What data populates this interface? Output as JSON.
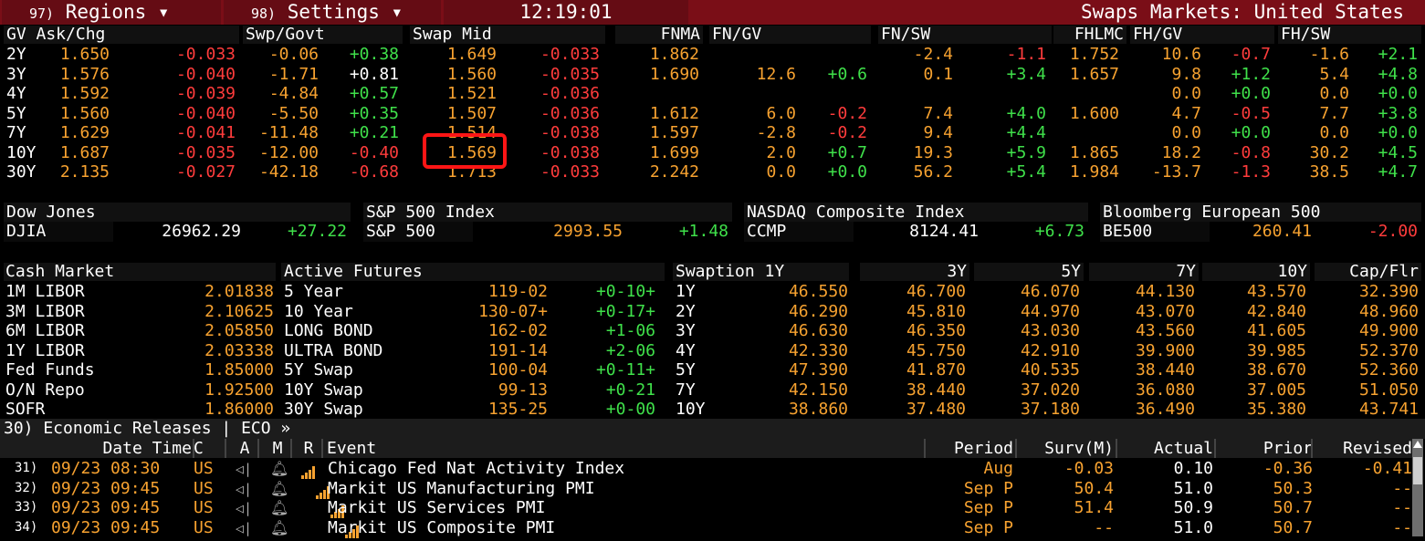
{
  "topbar": {
    "regions_num": "97)",
    "regions": "Regions ▾",
    "settings_num": "98)",
    "settings": "Settings ▾",
    "time": "12:19:01",
    "title": "Swaps Markets: United States"
  },
  "swaps": {
    "headers": {
      "gv": "GV Ask/Chg",
      "swpgovt": "Swp/Govt",
      "swapmid": "Swap Mid",
      "fnma": "FNMA",
      "fngv": "FN/GV",
      "fnsw": "FN/SW",
      "fhlmc": "FHLMC",
      "fhgv": "FH/GV",
      "fhsw": "FH/SW"
    },
    "rows": [
      {
        "t": "2Y",
        "gv": "1.650",
        "gvc": "-0.033",
        "sg": "-0.06",
        "sgc": "+0.38",
        "sm": "1.649",
        "smc": "-0.033",
        "fnma": "1.862",
        "fngv": "",
        "fngvc": "",
        "fnsw": "-2.4",
        "fnswc": "-1.1",
        "fhlmc": "1.752",
        "fhgv": "10.6",
        "fhgvc": "-0.7",
        "fhsw": "-1.6",
        "fhswc": "+2.1"
      },
      {
        "t": "3Y",
        "gv": "1.576",
        "gvc": "-0.040",
        "sg": "-1.71",
        "sgc": "+0.81",
        "sm": "1.560",
        "smc": "-0.035",
        "fnma": "1.690",
        "fngv": "12.6",
        "fngvc": "+0.6",
        "fnsw": "0.1",
        "fnswc": "+3.4",
        "fhlmc": "1.657",
        "fhgv": "9.8",
        "fhgvc": "+1.2",
        "fhsw": "5.4",
        "fhswc": "+4.8"
      },
      {
        "t": "4Y",
        "gv": "1.592",
        "gvc": "-0.039",
        "sg": "-4.84",
        "sgc": "+0.57",
        "sm": "1.521",
        "smc": "-0.036",
        "fnma": "",
        "fngv": "",
        "fngvc": "",
        "fnsw": "",
        "fnswc": "",
        "fhlmc": "",
        "fhgv": "0.0",
        "fhgvc": "+0.0",
        "fhsw": "0.0",
        "fhswc": "+0.0"
      },
      {
        "t": "5Y",
        "gv": "1.560",
        "gvc": "-0.040",
        "sg": "-5.50",
        "sgc": "+0.35",
        "sm": "1.507",
        "smc": "-0.036",
        "fnma": "1.612",
        "fngv": "6.0",
        "fngvc": "-0.2",
        "fnsw": "7.4",
        "fnswc": "+4.0",
        "fhlmc": "1.600",
        "fhgv": "4.7",
        "fhgvc": "-0.5",
        "fhsw": "7.7",
        "fhswc": "+3.8"
      },
      {
        "t": "7Y",
        "gv": "1.629",
        "gvc": "-0.041",
        "sg": "-11.48",
        "sgc": "+0.21",
        "sm": "1.514",
        "smc": "-0.038",
        "fnma": "1.597",
        "fngv": "-2.8",
        "fngvc": "-0.2",
        "fnsw": "9.4",
        "fnswc": "+4.4",
        "fhlmc": "",
        "fhgv": "0.0",
        "fhgvc": "+0.0",
        "fhsw": "0.0",
        "fhswc": "+0.0"
      },
      {
        "t": "10Y",
        "gv": "1.687",
        "gvc": "-0.035",
        "sg": "-12.00",
        "sgc": "-0.40",
        "sm": "1.569",
        "smc": "-0.038",
        "fnma": "1.699",
        "fngv": "2.0",
        "fngvc": "+0.7",
        "fnsw": "19.3",
        "fnswc": "+5.9",
        "fhlmc": "1.865",
        "fhgv": "18.2",
        "fhgvc": "-0.8",
        "fhsw": "30.2",
        "fhswc": "+4.5"
      },
      {
        "t": "30Y",
        "gv": "2.135",
        "gvc": "-0.027",
        "sg": "-42.18",
        "sgc": "-0.68",
        "sm": "1.713",
        "smc": "-0.033",
        "fnma": "2.242",
        "fngv": "0.0",
        "fngvc": "+0.0",
        "fnsw": "56.2",
        "fnswc": "+5.4",
        "fhlmc": "1.984",
        "fhgv": "-13.7",
        "fhgvc": "-1.3",
        "fhsw": "38.5",
        "fhswc": "+4.7"
      }
    ]
  },
  "indices": [
    {
      "title": "Dow Jones",
      "ticker": "DJIA",
      "value": "26962.29",
      "chg": "+27.22"
    },
    {
      "title": "S&P 500 Index",
      "ticker": "S&P 500",
      "value": "2993.55",
      "chg": "+1.48"
    },
    {
      "title": "NASDAQ Composite Index",
      "ticker": "CCMP",
      "value": "8124.41",
      "chg": "+6.73"
    },
    {
      "title": "Bloomberg European 500",
      "ticker": "BE500",
      "value": "260.41",
      "chg": "-2.00"
    }
  ],
  "cash": {
    "title": "Cash Market",
    "rows": [
      {
        "n": "1M LIBOR",
        "v": "2.01838"
      },
      {
        "n": "3M LIBOR",
        "v": "2.10625"
      },
      {
        "n": "6M LIBOR",
        "v": "2.05850"
      },
      {
        "n": "1Y LIBOR",
        "v": "2.03338"
      },
      {
        "n": "Fed Funds",
        "v": "1.85000"
      },
      {
        "n": "O/N Repo",
        "v": "1.92500"
      },
      {
        "n": "SOFR",
        "v": "1.86000"
      }
    ]
  },
  "futures": {
    "title": "Active Futures",
    "rows": [
      {
        "n": "5 Year",
        "p": "119-02",
        "c": "+0-10+"
      },
      {
        "n": "10 Year",
        "p": "130-07+",
        "c": "+0-17+"
      },
      {
        "n": "LONG BOND",
        "p": "162-02",
        "c": "+1-06"
      },
      {
        "n": "ULTRA BOND",
        "p": "191-14",
        "c": "+2-06"
      },
      {
        "n": "5Y Swap",
        "p": "100-04",
        "c": "+0-11+"
      },
      {
        "n": "10Y Swap",
        "p": "99-13",
        "c": "+0-21"
      },
      {
        "n": "30Y Swap",
        "p": "135-25",
        "c": "+0-00"
      }
    ]
  },
  "swaption": {
    "headers": [
      "Swaption 1Y",
      "3Y",
      "5Y",
      "7Y",
      "10Y",
      "Cap/Flr"
    ],
    "rows": [
      {
        "t": "1Y",
        "v": [
          "46.550",
          "46.700",
          "46.070",
          "44.130",
          "43.570",
          "32.390"
        ]
      },
      {
        "t": "2Y",
        "v": [
          "46.290",
          "45.810",
          "44.970",
          "43.070",
          "42.840",
          "48.960"
        ]
      },
      {
        "t": "3Y",
        "v": [
          "46.630",
          "46.350",
          "43.030",
          "43.560",
          "41.605",
          "49.900"
        ]
      },
      {
        "t": "4Y",
        "v": [
          "42.330",
          "45.750",
          "42.910",
          "39.900",
          "39.985",
          "52.370"
        ]
      },
      {
        "t": "5Y",
        "v": [
          "47.390",
          "41.870",
          "40.535",
          "38.440",
          "38.670",
          "52.360"
        ]
      },
      {
        "t": "7Y",
        "v": [
          "42.150",
          "38.440",
          "37.020",
          "36.080",
          "37.005",
          "51.050"
        ]
      },
      {
        "t": "10Y",
        "v": [
          "38.860",
          "37.480",
          "37.180",
          "36.490",
          "35.380",
          "43.741"
        ]
      }
    ]
  },
  "eco": {
    "title": "30) Economic Releases  |  ECO »",
    "headers": {
      "datetime": "Date Time",
      "c": "C",
      "a": "A",
      "m": "M",
      "r": "R",
      "event": "Event",
      "period": "Period",
      "surv": "Surv(M)",
      "actual": "Actual",
      "prior": "Prior",
      "revised": "Revised"
    },
    "rows": [
      {
        "n": "31)",
        "d": "09/23 08:30",
        "c": "US",
        "e": "Chicago Fed Nat Activity Index",
        "p": "Aug",
        "s": "-0.03",
        "a": "0.10",
        "pr": "-0.36",
        "rv": "-0.41"
      },
      {
        "n": "32)",
        "d": "09/23 09:45",
        "c": "US",
        "e": "Markit US Manufacturing PMI",
        "p": "Sep P",
        "s": "50.4",
        "a": "51.0",
        "pr": "50.3",
        "rv": "--"
      },
      {
        "n": "33)",
        "d": "09/23 09:45",
        "c": "US",
        "e": "Markit US Services PMI",
        "p": "Sep P",
        "s": "51.4",
        "a": "50.9",
        "pr": "50.7",
        "rv": "--"
      },
      {
        "n": "34)",
        "d": "09/23 09:45",
        "c": "US",
        "e": "Markit US Composite PMI",
        "p": "Sep P",
        "s": "--",
        "a": "51.0",
        "pr": "50.7",
        "rv": "--"
      }
    ]
  }
}
